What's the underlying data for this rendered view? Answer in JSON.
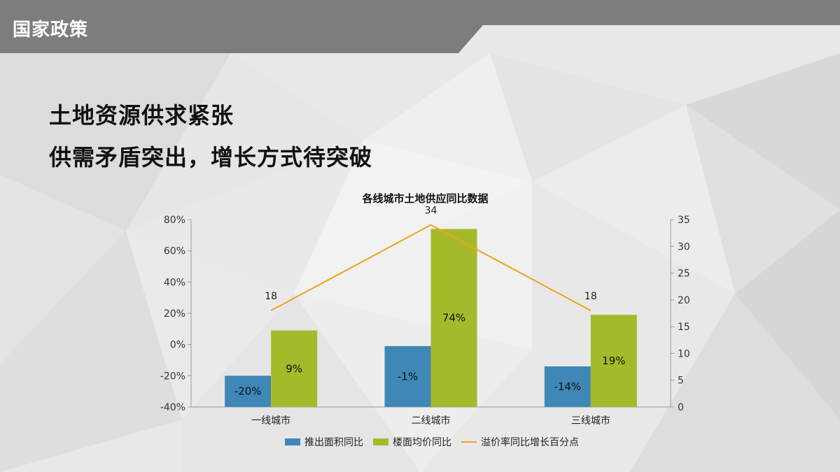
{
  "header": {
    "title": "国家政策"
  },
  "headline": {
    "line1": "土地资源供求紧张",
    "line2": "供需矛盾突出，增长方式待突破"
  },
  "chart_data": {
    "type": "bar",
    "title": "各线城市土地供应同比数据",
    "categories": [
      "一线城市",
      "二线城市",
      "三线城市"
    ],
    "series": [
      {
        "name": "推出面积同比",
        "kind": "bar",
        "axis": "left",
        "values": [
          -20,
          -1,
          -14
        ],
        "labels": [
          "-20%",
          "-1%",
          "-14%"
        ],
        "color": "#3e87b6"
      },
      {
        "name": "楼面均价同比",
        "kind": "bar",
        "axis": "left",
        "values": [
          9,
          74,
          19
        ],
        "labels": [
          "9%",
          "74%",
          "19%"
        ],
        "color": "#a6b92b"
      },
      {
        "name": "溢价率同比增长百分点",
        "kind": "line",
        "axis": "right",
        "values": [
          18,
          34,
          18
        ],
        "labels": [
          "18",
          "34",
          "18"
        ],
        "color": "#f0a21e"
      }
    ],
    "y_left": {
      "min": -40,
      "max": 80,
      "step": 20,
      "tick_labels": [
        "-40%",
        "-20%",
        "0%",
        "20%",
        "40%",
        "60%",
        "80%"
      ]
    },
    "y_right": {
      "min": 0,
      "max": 35,
      "step": 5,
      "tick_labels": [
        "0",
        "5",
        "10",
        "15",
        "20",
        "25",
        "30",
        "35"
      ]
    },
    "legend_position": "bottom",
    "grid": false
  }
}
